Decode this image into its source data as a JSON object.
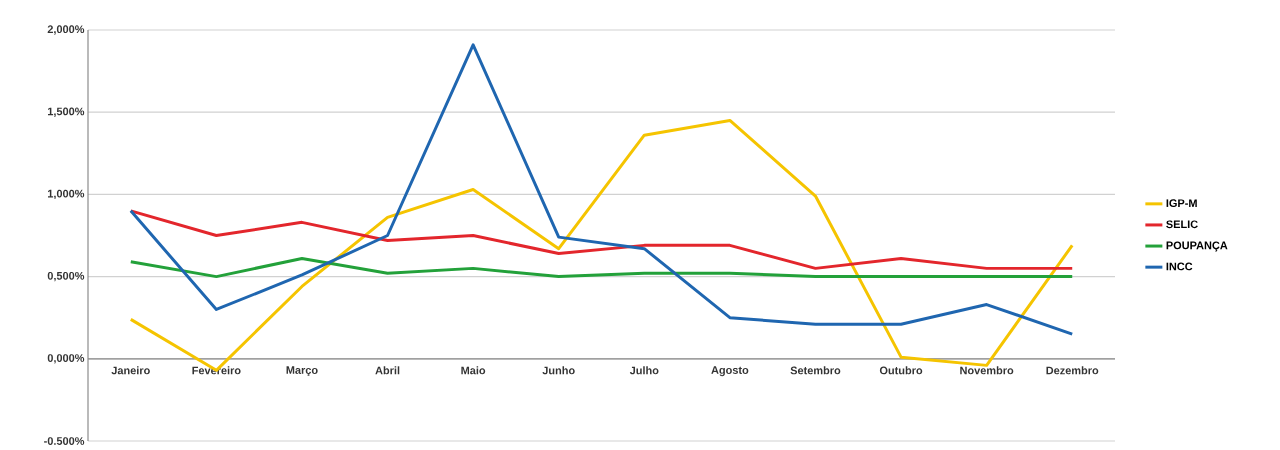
{
  "chart_data": {
    "type": "line",
    "categories": [
      "Janeiro",
      "Fevereiro",
      "Março",
      "Abril",
      "Maio",
      "Junho",
      "Julho",
      "Agosto",
      "Setembro",
      "Outubro",
      "Novembro",
      "Dezembro"
    ],
    "series": [
      {
        "name": "IGP-M",
        "color": "#f5c400",
        "values": [
          0.24,
          -0.07,
          0.44,
          0.86,
          1.03,
          0.67,
          1.36,
          1.45,
          0.99,
          0.01,
          -0.04,
          0.69
        ]
      },
      {
        "name": "SELIC",
        "color": "#e3262c",
        "values": [
          0.9,
          0.75,
          0.83,
          0.72,
          0.75,
          0.64,
          0.69,
          0.69,
          0.55,
          0.61,
          0.55,
          0.55
        ]
      },
      {
        "name": "POUPANÇA",
        "color": "#23a13a",
        "values": [
          0.59,
          0.5,
          0.61,
          0.52,
          0.55,
          0.5,
          0.52,
          0.52,
          0.5,
          0.5,
          0.5,
          0.5
        ]
      },
      {
        "name": "INCC",
        "color": "#1f66b0",
        "values": [
          0.9,
          0.3,
          0.51,
          0.75,
          1.91,
          0.74,
          0.67,
          0.25,
          0.21,
          0.21,
          0.33,
          0.15
        ]
      }
    ],
    "ylim": [
      -0.5,
      2.0
    ],
    "yticks": [
      {
        "value": -0.5,
        "label": "-0.500%"
      },
      {
        "value": 0,
        "label": "0,000%"
      },
      {
        "value": 0.5,
        "label": "0,500%"
      },
      {
        "value": 1.0,
        "label": "1,000%"
      },
      {
        "value": 1.5,
        "label": "1,500%"
      },
      {
        "value": 2.0,
        "label": "2,000%"
      }
    ],
    "grid": "y",
    "legend": "right",
    "marker": "none",
    "line_style": "solid"
  }
}
